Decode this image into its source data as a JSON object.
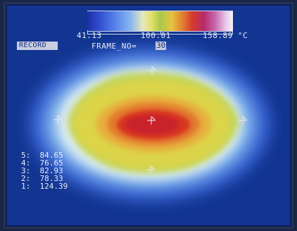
{
  "scale": {
    "min_label": "41.13",
    "mid_label": "100.01",
    "max_label": "158.89 °C"
  },
  "status": {
    "record_label": "RECORD",
    "frame_label": "FRAME_NO=",
    "frame_number": "30"
  },
  "readings": [
    {
      "index": "5:",
      "value": "84.65"
    },
    {
      "index": "4:",
      "value": "76.65"
    },
    {
      "index": "3:",
      "value": "82.93"
    },
    {
      "index": "2:",
      "value": "78.33"
    },
    {
      "index": "1:",
      "value": "124.39"
    }
  ],
  "colors": {
    "background": "#123591",
    "hot": "#d82a22",
    "warm": "#e6c43a",
    "mid": "#b8d04c",
    "cool": "#e2eef4"
  }
}
